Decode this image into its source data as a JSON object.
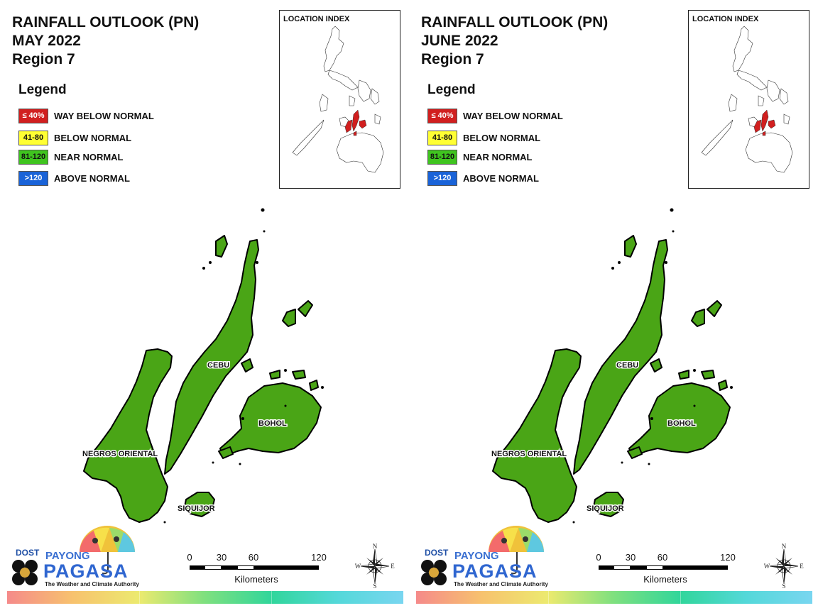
{
  "panels": [
    {
      "title_line1": "RAINFALL OUTLOOK (PN)",
      "title_line2": "MAY 2022",
      "title_line3": "Region 7",
      "legend_title": "Legend",
      "legend": [
        {
          "code": "≤ 40%",
          "label": "WAY BELOW NORMAL",
          "color": "#d11f1f",
          "text_color": "#ffffff"
        },
        {
          "code": "41-80",
          "label": "BELOW NORMAL",
          "color": "#ffff33",
          "text_color": "#111111"
        },
        {
          "code": "81-120",
          "label": "NEAR NORMAL",
          "color": "#3fc41f",
          "text_color": "#111111"
        },
        {
          "code": ">120",
          "label": "ABOVE NORMAL",
          "color": "#1a63d8",
          "text_color": "#ffffff"
        }
      ],
      "location_index_title": "LOCATION INDEX",
      "places": {
        "cebu": "CEBU",
        "bohol": "BOHOL",
        "negros": "NEGROS ORIENTAL",
        "siquijor": "SIQUIJOR"
      },
      "map_fill_color": "#4aa516",
      "scale": {
        "ticks": [
          "0",
          "30",
          "60",
          "120"
        ],
        "unit": "Kilometers"
      },
      "compass": {
        "n": "N",
        "s": "S",
        "e": "E",
        "w": "W"
      },
      "logo": {
        "dost": "DOST",
        "payong": "PAYONG",
        "pagasa": "PAGASA",
        "tagline": "The Weather and Climate Authority"
      }
    },
    {
      "title_line1": "RAINFALL OUTLOOK (PN)",
      "title_line2": "JUNE 2022",
      "title_line3": "Region 7",
      "legend_title": "Legend",
      "legend": [
        {
          "code": "≤ 40%",
          "label": "WAY BELOW NORMAL",
          "color": "#d11f1f",
          "text_color": "#ffffff"
        },
        {
          "code": "41-80",
          "label": "BELOW NORMAL",
          "color": "#ffff33",
          "text_color": "#111111"
        },
        {
          "code": "81-120",
          "label": "NEAR NORMAL",
          "color": "#3fc41f",
          "text_color": "#111111"
        },
        {
          "code": ">120",
          "label": "ABOVE NORMAL",
          "color": "#1a63d8",
          "text_color": "#ffffff"
        }
      ],
      "location_index_title": "LOCATION INDEX",
      "places": {
        "cebu": "CEBU",
        "bohol": "BOHOL",
        "negros": "NEGROS ORIENTAL",
        "siquijor": "SIQUIJOR"
      },
      "map_fill_color": "#4aa516",
      "scale": {
        "ticks": [
          "0",
          "30",
          "60",
          "120"
        ],
        "unit": "Kilometers"
      },
      "compass": {
        "n": "N",
        "s": "S",
        "e": "E",
        "w": "W"
      },
      "logo": {
        "dost": "DOST",
        "payong": "PAYONG",
        "pagasa": "PAGASA",
        "tagline": "The Weather and Climate Authority"
      }
    }
  ]
}
